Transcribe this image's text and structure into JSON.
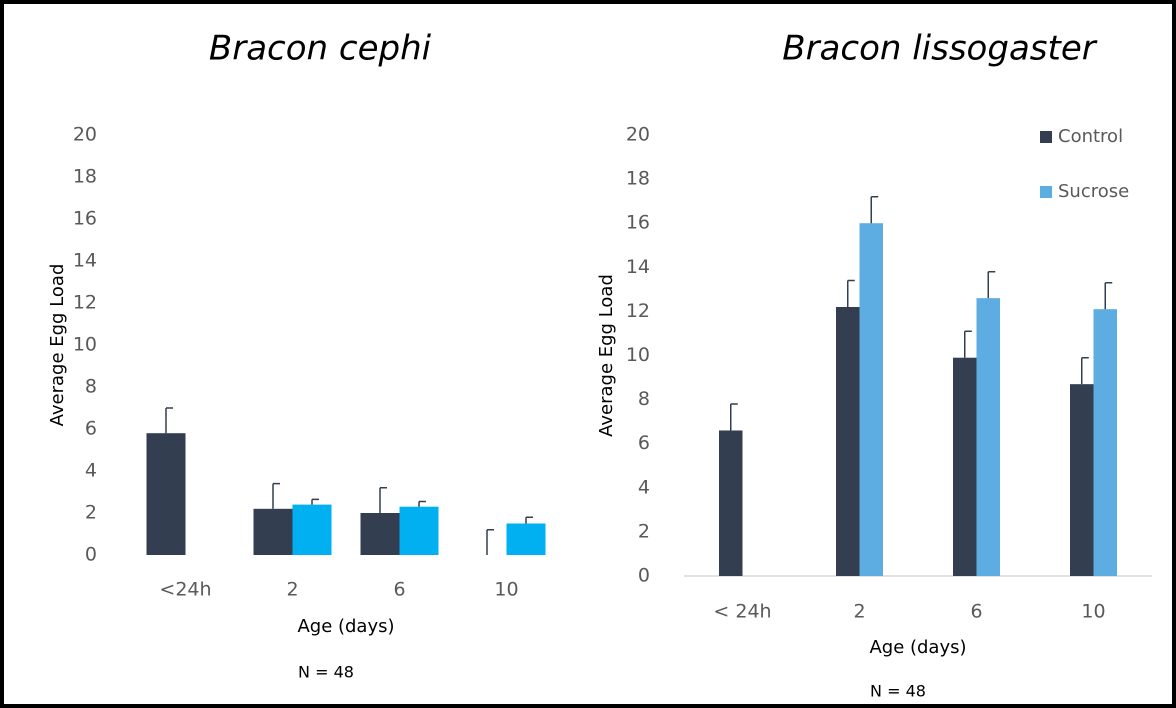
{
  "chart_data": [
    {
      "type": "bar",
      "title": "Bracon cephi",
      "x_label": "Age (days)",
      "y_label": "Average Egg Load",
      "note": "N = 48",
      "categories": [
        "<24h",
        "2",
        "6",
        "10"
      ],
      "series": [
        {
          "color": "#333f50",
          "values": [
            5.8,
            2.2,
            2.0,
            0
          ],
          "errors": [
            1.2,
            1.2,
            1.2,
            1.2
          ]
        },
        {
          "color": "#00b0f0",
          "values": [
            null,
            2.4,
            2.3,
            1.5
          ],
          "errors": [
            null,
            0.25,
            0.25,
            0.3
          ]
        }
      ],
      "ylim": [
        0,
        20
      ],
      "yticks": [
        0,
        2,
        4,
        6,
        8,
        10,
        12,
        14,
        16,
        18,
        20
      ],
      "x_axis_line": false
    },
    {
      "type": "bar",
      "title": "Bracon lissogaster",
      "x_label": "Age (days)",
      "y_label": "Average Egg Load",
      "note": "N = 48",
      "categories": [
        "< 24h",
        "2",
        "6",
        "10"
      ],
      "series": [
        {
          "name": "Control",
          "color": "#333f50",
          "values": [
            6.6,
            12.2,
            9.9,
            8.7
          ],
          "errors": [
            1.2,
            1.2,
            1.2,
            1.2
          ]
        },
        {
          "name": "Sucrose",
          "color": "#5dade2",
          "values": [
            null,
            16.0,
            12.6,
            12.1
          ],
          "errors": [
            null,
            1.2,
            1.2,
            1.2
          ]
        }
      ],
      "ylim": [
        0,
        20
      ],
      "yticks": [
        0,
        2,
        4,
        6,
        8,
        10,
        12,
        14,
        16,
        18,
        20
      ],
      "x_axis_line": true,
      "legend": "upper right"
    }
  ]
}
